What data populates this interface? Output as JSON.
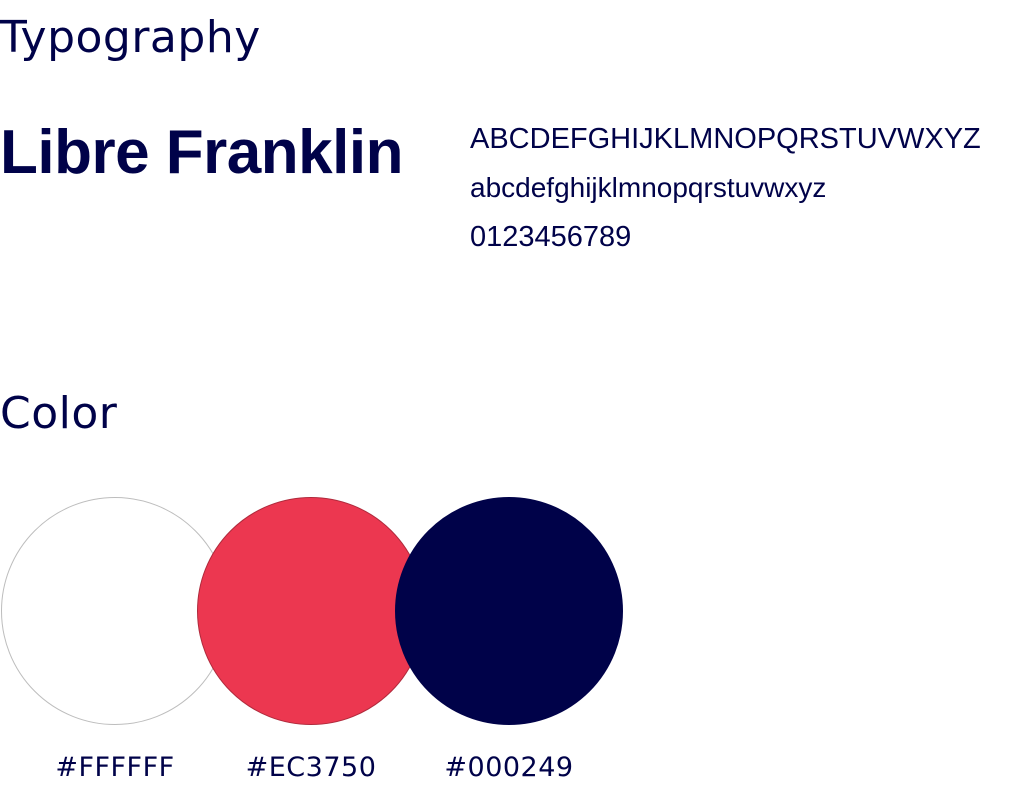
{
  "typography": {
    "title": "Typography",
    "font_name": "Libre Franklin",
    "specimen": {
      "uppercase": "ABCDEFGHIJKLMNOPQRSTUVWXYZ",
      "lowercase": "abcdefghijklmnopqrstuvwxyz",
      "digits": "0123456789"
    }
  },
  "color": {
    "title": "Color",
    "swatches": [
      {
        "hex": "#FFFFFF",
        "fill": "#FFFFFF"
      },
      {
        "hex": "#EC3750",
        "fill": "#EC3750"
      },
      {
        "hex": "#000249",
        "fill": "#000249"
      }
    ]
  }
}
